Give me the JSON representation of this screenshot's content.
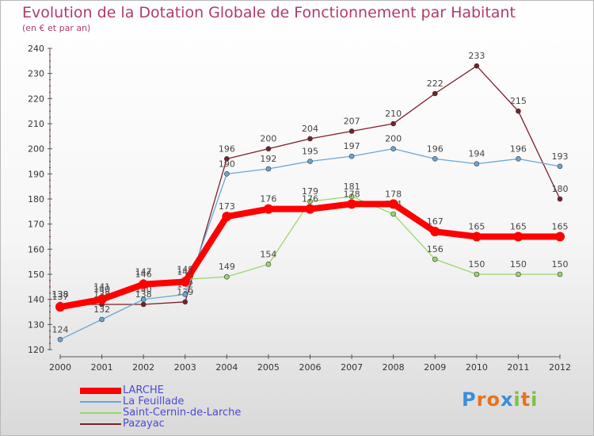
{
  "chart_data": {
    "type": "line",
    "title": "Evolution de la Dotation Globale de Fonctionnement par Habitant",
    "subtitle": "(en € et par an)",
    "x": [
      "2000",
      "2001",
      "2002",
      "2003",
      "2004",
      "2005",
      "2006",
      "2007",
      "2008",
      "2009",
      "2010",
      "2011",
      "2012"
    ],
    "yticks": [
      "120",
      "130",
      "140",
      "150",
      "160",
      "170",
      "180",
      "190",
      "200",
      "210",
      "220",
      "230",
      "240"
    ],
    "ylim": [
      120,
      240
    ],
    "series": [
      {
        "name": "Pazayac",
        "color": "#7a1f2b",
        "values": [
          138,
          138,
          138,
          139,
          196,
          200,
          204,
          207,
          210,
          222,
          233,
          215,
          180
        ]
      },
      {
        "name": "La Feuillade",
        "color": "#6aa6d4",
        "values": [
          124,
          132,
          140,
          142,
          190,
          192,
          195,
          197,
          200,
          196,
          194,
          196,
          193
        ]
      },
      {
        "name": "Saint-Cernin-de-Larche",
        "color": "#9ad86a",
        "values": [
          138,
          141,
          147,
          148,
          149,
          154,
          179,
          181,
          174,
          156,
          150,
          150,
          150
        ]
      },
      {
        "name": "LARCHE",
        "color": "#ff0000",
        "values": [
          137,
          140,
          146,
          147,
          173,
          176,
          176,
          178,
          178,
          167,
          165,
          165,
          165
        ]
      }
    ],
    "legend": [
      "LARCHE",
      "La Feuillade",
      "Saint-Cernin-de-Larche",
      "Pazayac"
    ],
    "grid": false,
    "legend_position": "bottom-left"
  },
  "brand": {
    "letters": [
      "P",
      "r",
      "o",
      "x",
      "i",
      "t",
      "i"
    ],
    "colors": [
      "#3a8fd8",
      "#e8731f",
      "#e8731f",
      "#3a8fd8",
      "#7ec043",
      "#e8731f",
      "#7ec043"
    ]
  }
}
